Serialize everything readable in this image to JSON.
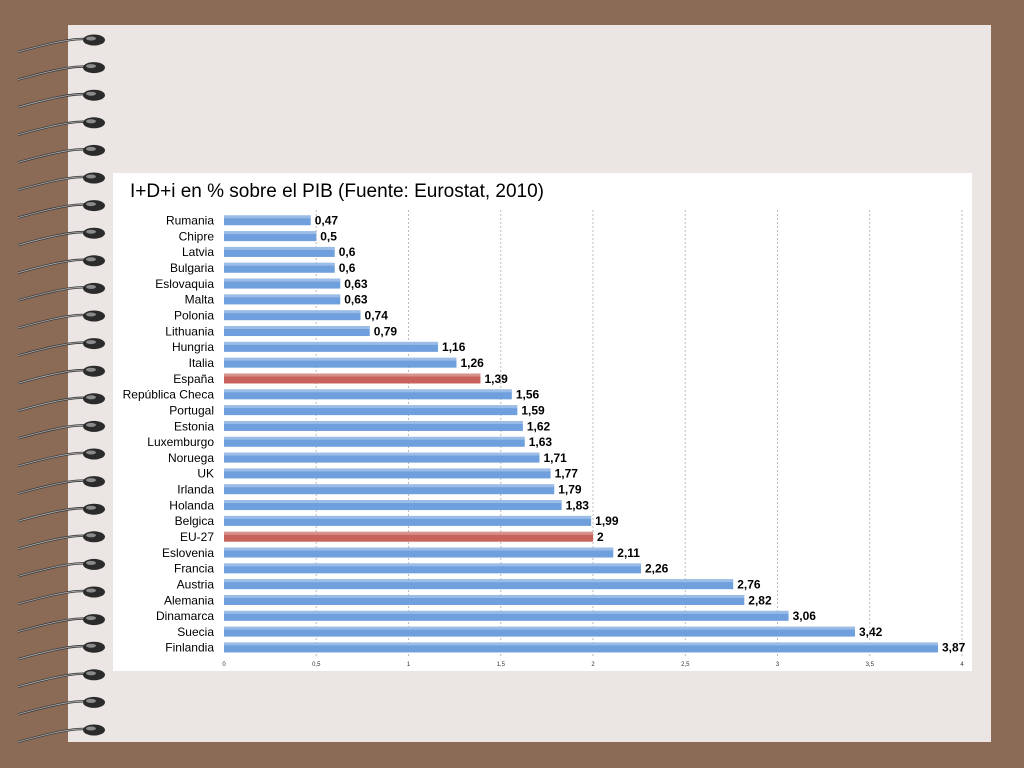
{
  "colors": {
    "background": "#8c6b56",
    "page": "#ebe6e3",
    "bar": "#6f9fdc",
    "highlight_bar": "#c8635c",
    "grid": "#bbbbbb"
  },
  "decoration": {
    "binding_icon": "spiral-binding-icon"
  },
  "chart_data": {
    "type": "bar",
    "orientation": "horizontal",
    "title": "I+D+i en % sobre el PIB (Fuente: Eurostat, 2010)",
    "categories": [
      "Rumania",
      "Chipre",
      "Latvia",
      "Bulgaria",
      "Eslovaquia",
      "Malta",
      "Polonia",
      "Lithuania",
      "Hungria",
      "Italia",
      "España",
      "República Checa",
      "Portugal",
      "Estonia",
      "Luxemburgo",
      "Noruega",
      "UK",
      "Irlanda",
      "Holanda",
      "Belgica",
      "EU-27",
      "Eslovenia",
      "Francia",
      "Austria",
      "Alemania",
      "Dinamarca",
      "Suecia",
      "Finlandia"
    ],
    "values": [
      0.47,
      0.5,
      0.6,
      0.6,
      0.63,
      0.63,
      0.74,
      0.79,
      1.16,
      1.26,
      1.39,
      1.56,
      1.59,
      1.62,
      1.63,
      1.71,
      1.77,
      1.79,
      1.83,
      1.99,
      2,
      2.11,
      2.26,
      2.76,
      2.82,
      3.06,
      3.42,
      3.87
    ],
    "value_labels": [
      "0,47",
      "0,5",
      "0,6",
      "0,6",
      "0,63",
      "0,63",
      "0,74",
      "0,79",
      "1,16",
      "1,26",
      "1,39",
      "1,56",
      "1,59",
      "1,62",
      "1,63",
      "1,71",
      "1,77",
      "1,79",
      "1,83",
      "1,99",
      "2",
      "2,11",
      "2,26",
      "2,76",
      "2,82",
      "3,06",
      "3,42",
      "3,87"
    ],
    "highlighted": [
      "España",
      "EU-27"
    ],
    "xlim": [
      0,
      4
    ],
    "x_ticks": [
      0,
      0.5,
      1,
      1.5,
      2,
      2.5,
      3,
      3.5,
      4
    ],
    "x_tick_labels": [
      "0",
      "0,5",
      "1",
      "1,5",
      "2",
      "2,5",
      "3",
      "3,5",
      "4"
    ],
    "grid": true,
    "legend": "none"
  }
}
